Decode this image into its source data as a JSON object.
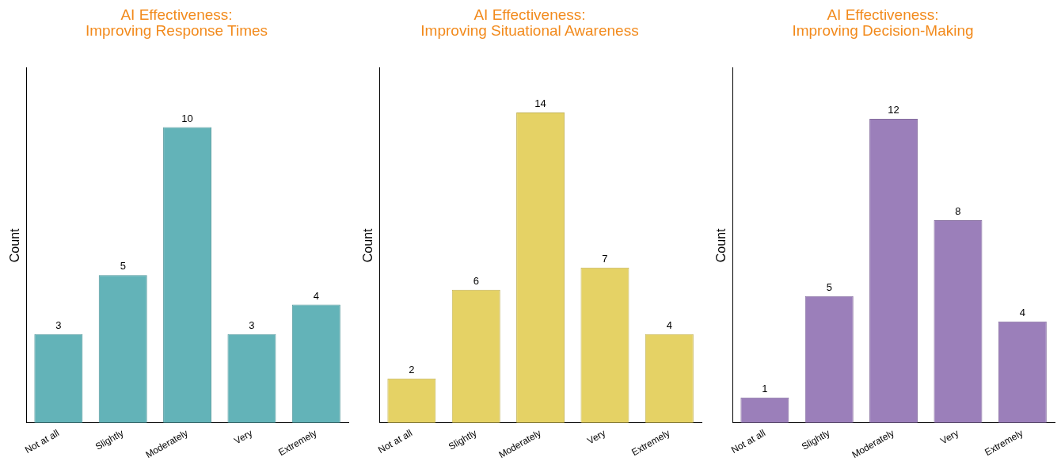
{
  "chart_data": [
    {
      "type": "bar",
      "title": "AI Effectiveness:\nImproving Response Times",
      "ylabel": "Count",
      "categories": [
        "Not at all",
        "Slightly",
        "Moderately",
        "Very",
        "Extremely"
      ],
      "values": [
        3,
        5,
        10,
        3,
        4
      ],
      "color": "#63b3b8",
      "data_labels": true,
      "grid": false,
      "tick_labels": "x"
    },
    {
      "type": "bar",
      "title": "AI Effectiveness:\nImproving Situational Awareness",
      "ylabel": "Count",
      "categories": [
        "Not at all",
        "Slightly",
        "Moderately",
        "Very",
        "Extremely"
      ],
      "values": [
        2,
        6,
        14,
        7,
        4
      ],
      "color": "#e5d265",
      "data_labels": true,
      "grid": false,
      "tick_labels": "x"
    },
    {
      "type": "bar",
      "title": "AI Effectiveness:\nImproving Decision-Making",
      "ylabel": "Count",
      "categories": [
        "Not at all",
        "Slightly",
        "Moderately",
        "Very",
        "Extremely"
      ],
      "values": [
        1,
        5,
        12,
        8,
        4
      ],
      "color": "#9b7fba",
      "data_labels": true,
      "grid": false,
      "tick_labels": "x"
    }
  ]
}
